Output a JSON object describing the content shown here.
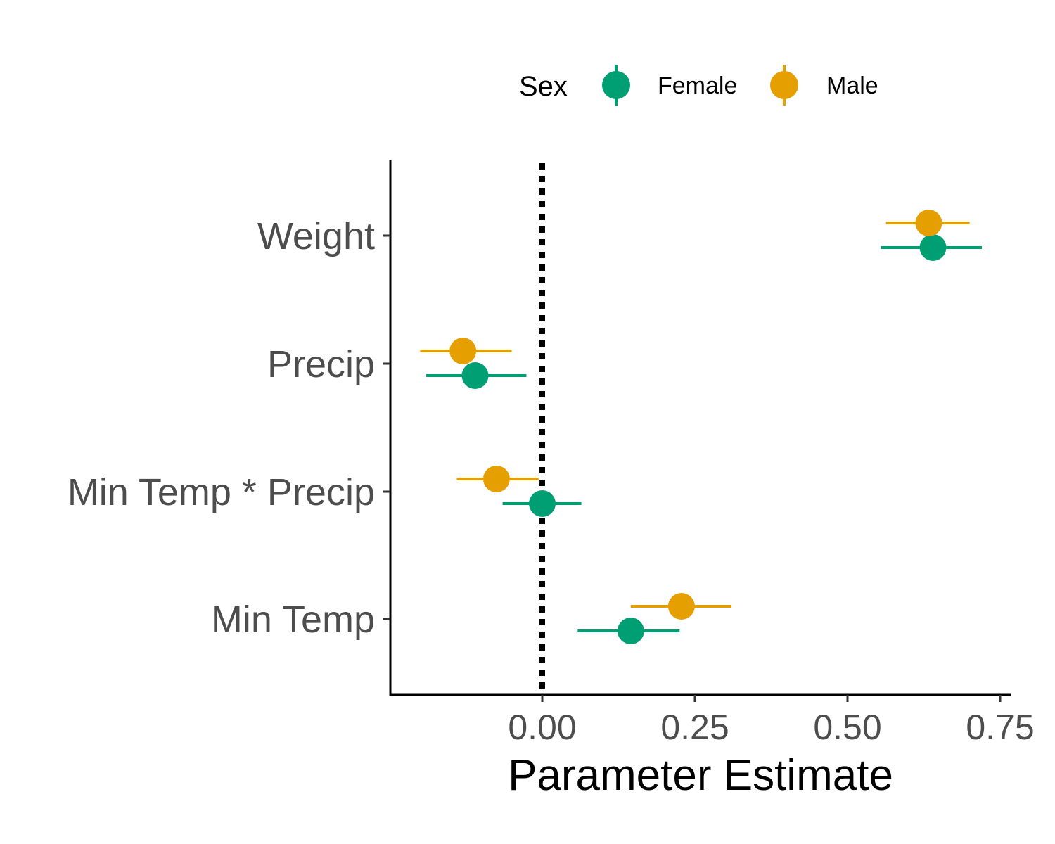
{
  "colors": {
    "female": "#009E73",
    "male": "#E69F00",
    "axis": "#000000",
    "text": "#4d4d4d"
  },
  "legend": {
    "title": "Sex",
    "position": "top",
    "entries": [
      "Female",
      "Male"
    ]
  },
  "chart_data": {
    "type": "scatter",
    "subtype": "coefficient plot with horizontal error bars",
    "title": "",
    "xlabel": "Parameter Estimate",
    "ylabel": "",
    "categories": [
      "Weight",
      "Precip",
      "Min Temp * Precip",
      "Min Temp"
    ],
    "x_ticks": [
      0.0,
      0.25,
      0.5,
      0.75
    ],
    "x_tick_labels": [
      "0.00",
      "0.25",
      "0.50",
      "0.75"
    ],
    "xlim": [
      -0.25,
      0.77
    ],
    "reference_line": {
      "x": 0,
      "style": "dotted"
    },
    "grid": false,
    "series": [
      {
        "name": "Female",
        "color": "#009E73",
        "points": [
          {
            "category": "Weight",
            "estimate": 0.64,
            "lower": 0.555,
            "upper": 0.72
          },
          {
            "category": "Precip",
            "estimate": -0.11,
            "lower": -0.19,
            "upper": -0.026
          },
          {
            "category": "Min Temp * Precip",
            "estimate": 0.0,
            "lower": -0.065,
            "upper": 0.064
          },
          {
            "category": "Min Temp",
            "estimate": 0.145,
            "lower": 0.058,
            "upper": 0.225
          }
        ]
      },
      {
        "name": "Male",
        "color": "#E69F00",
        "points": [
          {
            "category": "Weight",
            "estimate": 0.633,
            "lower": 0.563,
            "upper": 0.7
          },
          {
            "category": "Precip",
            "estimate": -0.13,
            "lower": -0.2,
            "upper": -0.05
          },
          {
            "category": "Min Temp * Precip",
            "estimate": -0.075,
            "lower": -0.14,
            "upper": -0.006
          },
          {
            "category": "Min Temp",
            "estimate": 0.228,
            "lower": 0.145,
            "upper": 0.31
          }
        ]
      }
    ]
  }
}
